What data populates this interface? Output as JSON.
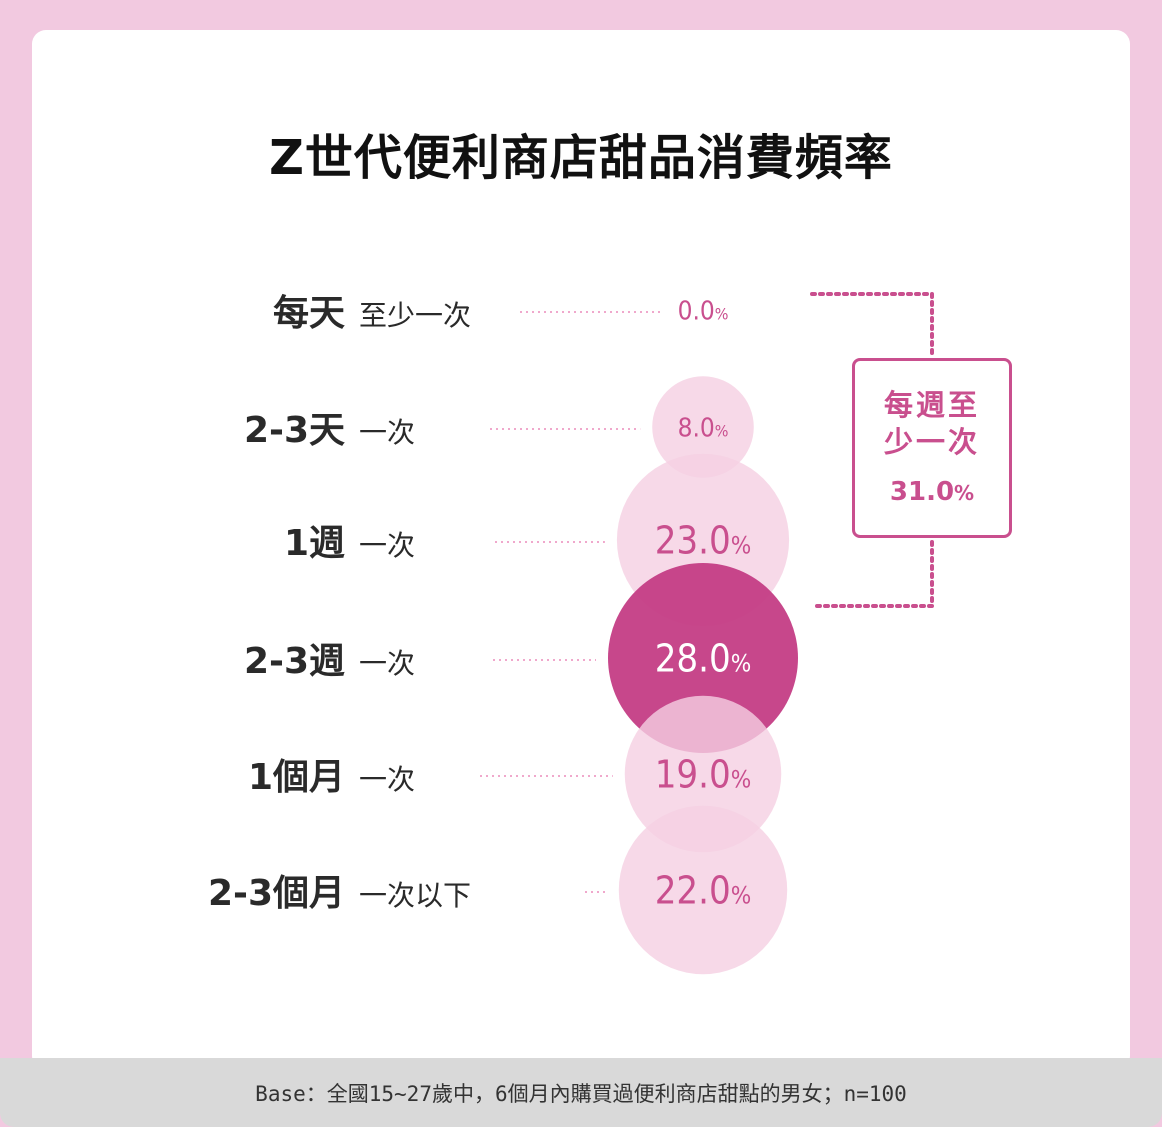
{
  "title": "Z世代便利商店甜品消費頻率",
  "chart_data": {
    "type": "bubble",
    "unit": "%",
    "categories": [
      {
        "main": "每天",
        "sub": "至少一次",
        "value": 0.0,
        "label": "0.0"
      },
      {
        "main": "2-3天",
        "sub": "一次",
        "value": 8.0,
        "label": "8.0"
      },
      {
        "main": "1週",
        "sub": "一次",
        "value": 23.0,
        "label": "23.0"
      },
      {
        "main": "2-3週",
        "sub": "一次",
        "value": 28.0,
        "label": "28.0"
      },
      {
        "main": "1個月",
        "sub": "一次",
        "value": 19.0,
        "label": "19.0"
      },
      {
        "main": "2-3個月",
        "sub": "一次以下",
        "value": 22.0,
        "label": "22.0"
      }
    ],
    "highlight_index": 3,
    "colors": {
      "bubble": "#f5d0e2",
      "highlight": "#c43d85",
      "text": "#c94f8e",
      "highlight_text": "#ffffff",
      "leader": "#f0a8cc"
    }
  },
  "callout": {
    "label": "每週至少一次",
    "value": "31.0",
    "unit": "%"
  },
  "footer": "Base：全國15~27歲中，6個月內購買過便利商店甜點的男女；n=100"
}
